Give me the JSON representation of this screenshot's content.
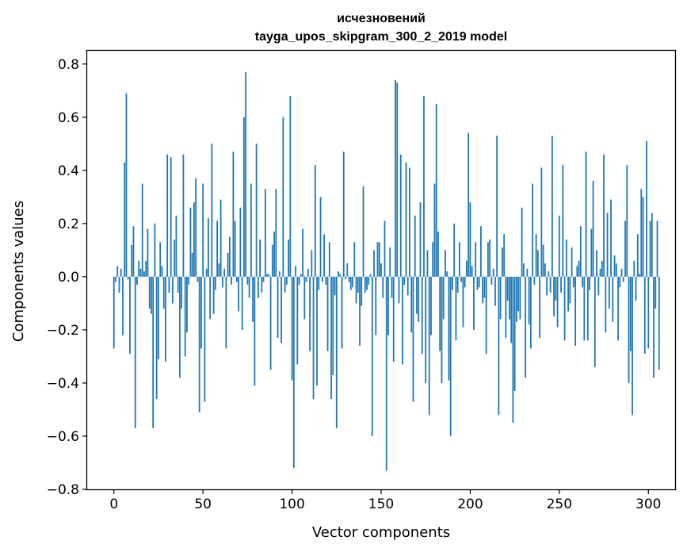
{
  "chart_data": {
    "type": "bar",
    "title_line1": "исчезновений",
    "title_line2": "tayga_upos_skipgram_300_2_2019 model",
    "xlabel": "Vector components",
    "ylabel": "Components values",
    "xlim": [
      -15,
      315
    ],
    "ylim": [
      -0.8,
      0.85
    ],
    "xticks": [
      0,
      50,
      100,
      150,
      200,
      250,
      300
    ],
    "yticks": [
      -0.8,
      -0.6,
      -0.4,
      -0.2,
      0.0,
      0.2,
      0.4,
      0.6,
      0.8
    ],
    "ytick_labels": [
      "−0.8",
      "−0.6",
      "−0.4",
      "−0.2",
      "0.0",
      "0.2",
      "0.4",
      "0.6",
      "0.8"
    ],
    "xtick_labels": [
      "0",
      "50",
      "100",
      "150",
      "200",
      "250",
      "300"
    ],
    "bar_color": "#1f77b4",
    "grid": false,
    "values": [
      -0.27,
      -0.02,
      0.04,
      -0.06,
      0.03,
      -0.22,
      0.43,
      0.69,
      -0.01,
      -0.29,
      0.12,
      0.19,
      -0.57,
      -0.03,
      0.06,
      0.03,
      0.35,
      0.02,
      0.06,
      0.18,
      -0.12,
      -0.14,
      -0.57,
      0.2,
      -0.46,
      -0.31,
      0.13,
      0.04,
      -0.12,
      -0.32,
      0.46,
      -0.06,
      0.45,
      -0.1,
      0.14,
      0.23,
      -0.06,
      -0.38,
      -0.12,
      0.46,
      -0.3,
      -0.21,
      -0.03,
      0.26,
      0.09,
      0.28,
      0.37,
      -0.02,
      -0.51,
      -0.27,
      0.35,
      -0.47,
      0.03,
      0.22,
      -0.16,
      0.5,
      -0.14,
      -0.05,
      0.21,
      0.05,
      0.29,
      -0.04,
      0.03,
      -0.27,
      0.09,
      0.15,
      -0.03,
      0.47,
      0.21,
      -0.02,
      -0.13,
      0.26,
      -0.2,
      0.6,
      0.77,
      -0.03,
      -0.08,
      0.35,
      -0.17,
      -0.41,
      0.5,
      -0.08,
      0.14,
      -0.06,
      -0.02,
      0.33,
      0.01,
      0.01,
      -0.35,
      0.12,
      0.17,
      0.33,
      -0.23,
      0.02,
      -0.25,
      0.6,
      -0.06,
      -0.03,
      0.14,
      0.68,
      -0.39,
      -0.72,
      0.04,
      -0.33,
      -0.03,
      0.01,
      0.18,
      -0.16,
      -0.02,
      0.03,
      -0.28,
      0.1,
      -0.46,
      0.42,
      -0.41,
      -0.05,
      0.3,
      -0.02,
      0.16,
      -0.03,
      -0.28,
      0.13,
      -0.46,
      -0.37,
      -0.07,
      -0.57,
      0.02,
      0.01,
      -0.27,
      0.47,
      -0.01,
      0.05,
      -0.02,
      -0.05,
      -0.04,
      0.13,
      -0.1,
      -0.06,
      -0.26,
      -0.11,
      0.34,
      -0.06,
      -0.05,
      -0.03,
      0.01,
      -0.6,
      0.1,
      -0.22,
      0.13,
      0.13,
      0.05,
      -0.08,
      0.21,
      -0.73,
      -0.22,
      0.11,
      -0.08,
      -0.32,
      0.74,
      0.73,
      -0.1,
      0.46,
      -0.33,
      -0.03,
      0.43,
      -0.07,
      0.41,
      -0.21,
      -0.47,
      0.23,
      -0.14,
      -0.17,
      0.28,
      -0.29,
      0.68,
      -0.4,
      0.1,
      -0.52,
      -0.22,
      0.13,
      0.35,
      0.65,
      0.17,
      -0.28,
      -0.4,
      -0.16,
      0.1,
      0.02,
      -0.39,
      -0.6,
      -0.05,
      0.2,
      -0.24,
      -0.06,
      0.13,
      -0.02,
      -0.19,
      -0.04,
      0.06,
      0.54,
      0.28,
      0.04,
      -0.2,
      0.13,
      -0.05,
      -0.04,
      0.19,
      -0.1,
      -0.08,
      -0.29,
      0.13,
      0.14,
      -0.03,
      0.03,
      -0.11,
      0.53,
      -0.52,
      -0.16,
      0.11,
      0.16,
      -0.23,
      -0.09,
      -0.16,
      -0.25,
      -0.55,
      -0.43,
      -0.17,
      -0.13,
      -0.16,
      0.26,
      0.05,
      -0.38,
      0.03,
      -0.18,
      -0.27,
      0.35,
      -0.03,
      0.16,
      0.1,
      -0.23,
      0.41,
      0.12,
      0.05,
      -0.07,
      0.02,
      -0.06,
      0.53,
      -0.15,
      -0.09,
      -0.19,
      0.23,
      -0.06,
      0.42,
      -0.24,
      0.14,
      -0.13,
      -0.1,
      0.11,
      -0.04,
      -0.26,
      0.04,
      0.06,
      0.19,
      -0.04,
      -0.24,
      0.47,
      -0.24,
      -0.05,
      0.18,
      0.36,
      -0.34,
      0.1,
      -0.07,
      0.03,
      0.06,
      0.46,
      -0.21,
      0.24,
      -0.12,
      0.29,
      -0.17,
      0.08,
      0.05,
      -0.24,
      -0.04,
      0.03,
      -0.02,
      0.21,
      0.42,
      -0.4,
      -0.28,
      -0.52,
      0.06,
      -0.09,
      0.16,
      0.01,
      0.33,
      0.3,
      -0.29,
      0.51,
      -0.27,
      0.21,
      0.24,
      -0.38,
      -0.12,
      0.21,
      -0.35
    ]
  }
}
